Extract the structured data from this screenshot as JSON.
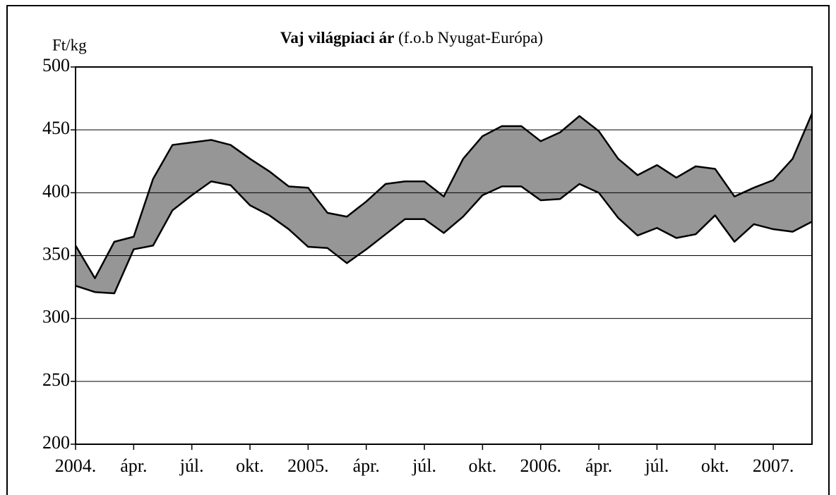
{
  "chart_data": {
    "type": "area",
    "title": "Vaj világpiaci ár",
    "subtitle": "(f.o.b Nyugat-Európa)",
    "y_axis_label": "Ft/kg",
    "categories": [
      "2004.",
      null,
      null,
      "ápr.",
      null,
      null,
      "júl.",
      null,
      null,
      "okt.",
      null,
      null,
      "2005.",
      null,
      null,
      "ápr.",
      null,
      null,
      "júl.",
      null,
      null,
      "okt.",
      null,
      null,
      "2006.",
      null,
      null,
      "ápr.",
      null,
      null,
      "júl.",
      null,
      null,
      "okt.",
      null,
      null,
      "2007.",
      null,
      null
    ],
    "series": [
      {
        "color": "#000000",
        "values": [
          358,
          332,
          361,
          365,
          411,
          438,
          440,
          442,
          438,
          427,
          417,
          405,
          404,
          384,
          381,
          393,
          407,
          409,
          409,
          397,
          427,
          445,
          453,
          453,
          441,
          448,
          461,
          449,
          427,
          414,
          422,
          412,
          421,
          419,
          397,
          404,
          410,
          427,
          463
        ]
      },
      {
        "color": "#000000",
        "values": [
          326,
          321,
          320,
          355,
          358,
          386,
          398,
          409,
          406,
          390,
          382,
          371,
          357,
          356,
          344,
          355,
          367,
          379,
          379,
          368,
          381,
          398,
          405,
          405,
          394,
          395,
          407,
          400,
          380,
          366,
          372,
          364,
          367,
          382,
          361,
          375,
          371,
          369,
          377
        ]
      }
    ],
    "fill_color": "#969696",
    "ylim": [
      200,
      500
    ],
    "yticks": [
      200,
      250,
      300,
      350,
      400,
      450,
      500
    ],
    "grid": true
  }
}
